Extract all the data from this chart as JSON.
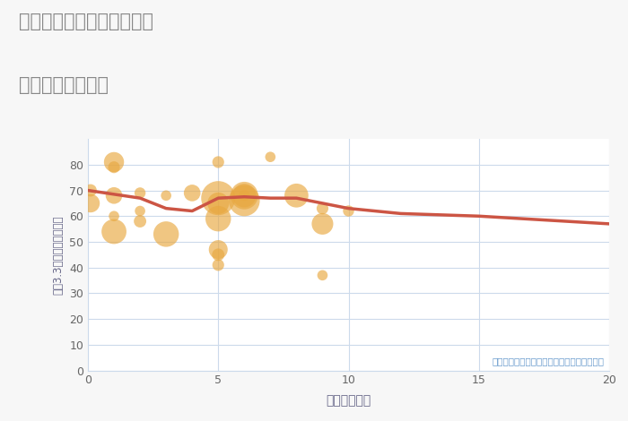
{
  "title_line1": "愛知県名古屋市南区鳥栖の",
  "title_line2": "駅距離別土地価格",
  "xlabel": "駅距離（分）",
  "ylabel": "平（3.3㎡）単価（万円）",
  "annotation": "円の大きさは、取引のあった物件面積を示す",
  "bg_color": "#f7f7f7",
  "plot_bg_color": "#ffffff",
  "grid_color": "#ccdaeb",
  "title_color": "#888888",
  "line_color": "#cc5544",
  "bubble_color": "#e8a840",
  "bubble_alpha": 0.65,
  "annotation_color": "#6699cc",
  "xlim": [
    0,
    20
  ],
  "ylim": [
    0,
    90
  ],
  "xticks": [
    0,
    5,
    10,
    15,
    20
  ],
  "yticks": [
    0,
    10,
    20,
    30,
    40,
    50,
    60,
    70,
    80
  ],
  "scatter_x": [
    0.1,
    0.1,
    1.0,
    1.0,
    1.0,
    1.0,
    1.0,
    2.0,
    2.0,
    2.0,
    3.0,
    3.0,
    4.0,
    5.0,
    5.0,
    5.0,
    5.0,
    5.0,
    5.0,
    5.0,
    6.0,
    6.0,
    6.0,
    6.0,
    7.0,
    8.0,
    9.0,
    9.0,
    9.0,
    10.0
  ],
  "scatter_y": [
    70,
    65,
    81,
    79,
    68,
    60,
    54,
    69,
    58,
    62,
    68,
    53,
    69,
    81,
    65,
    67,
    59,
    47,
    41,
    45,
    68,
    66,
    68,
    68,
    83,
    68,
    57,
    63,
    37,
    62
  ],
  "scatter_size": [
    100,
    220,
    260,
    90,
    180,
    70,
    400,
    80,
    100,
    70,
    70,
    420,
    180,
    90,
    300,
    750,
    420,
    230,
    90,
    100,
    80,
    620,
    490,
    360,
    70,
    370,
    300,
    90,
    70,
    80
  ],
  "line_x": [
    0,
    1,
    2,
    3,
    4,
    5,
    6,
    7,
    8,
    9,
    10,
    12,
    15,
    20
  ],
  "line_y": [
    70,
    68.5,
    67,
    63,
    62,
    67,
    67.5,
    67,
    67,
    65,
    63,
    61,
    60,
    57
  ]
}
